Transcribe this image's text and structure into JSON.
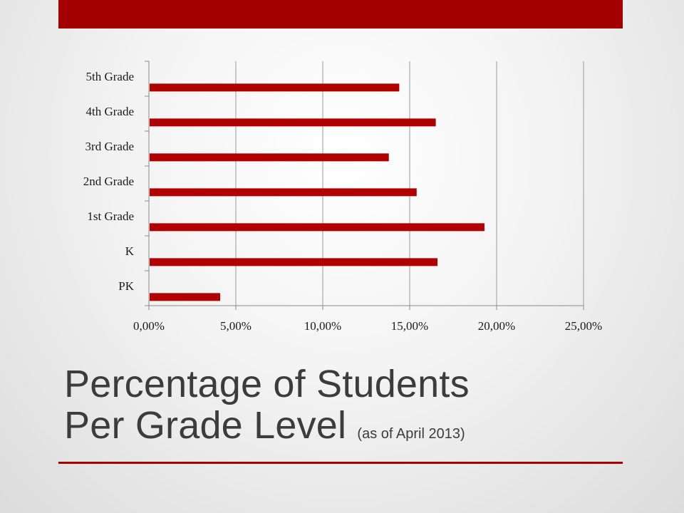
{
  "theme": {
    "accent": "#a50000",
    "bar_color": "#b00000",
    "grid_color": "#9a9a9a"
  },
  "slide": {
    "title_line1": "Percentage of Students",
    "title_line2": "Per Grade Level",
    "subtitle": "(as of April 2013)"
  },
  "chart_data": {
    "type": "bar",
    "orientation": "horizontal",
    "categories": [
      "PK",
      "K",
      "1st Grade",
      "2nd Grade",
      "3rd Grade",
      "4th Grade",
      "5th Grade"
    ],
    "values": [
      4.1,
      16.6,
      19.3,
      15.4,
      13.8,
      16.5,
      14.4
    ],
    "unit": "%",
    "xlim": [
      0,
      25
    ],
    "x_ticks": [
      0,
      5,
      10,
      15,
      20,
      25
    ],
    "x_tick_labels": [
      "0,00%",
      "5,00%",
      "10,00%",
      "15,00%",
      "20,00%",
      "25,00%"
    ],
    "grid": true,
    "legend": "none"
  }
}
